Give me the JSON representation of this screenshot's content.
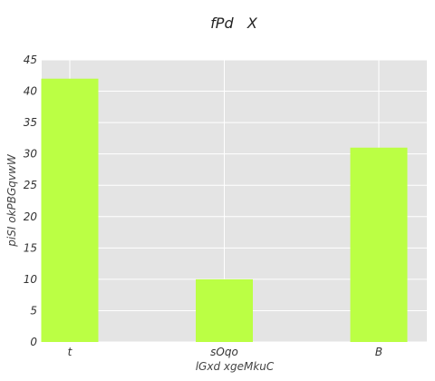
{
  "chart_data": {
    "type": "bar",
    "title": "fPd   X",
    "xlabel": "lGxd xgeMkuC",
    "ylabel": "piSI okPBGqvwW",
    "categories": [
      "t",
      "sOqo",
      "B"
    ],
    "values": [
      42,
      10,
      31
    ],
    "ylim": [
      0,
      45
    ],
    "yticks": [
      0,
      5,
      10,
      15,
      20,
      25,
      30,
      35,
      40,
      45
    ],
    "grid": true,
    "colors": {
      "bar": "#bbff44",
      "plot_background": "#e4e4e4",
      "grid": "#ffffff"
    }
  }
}
